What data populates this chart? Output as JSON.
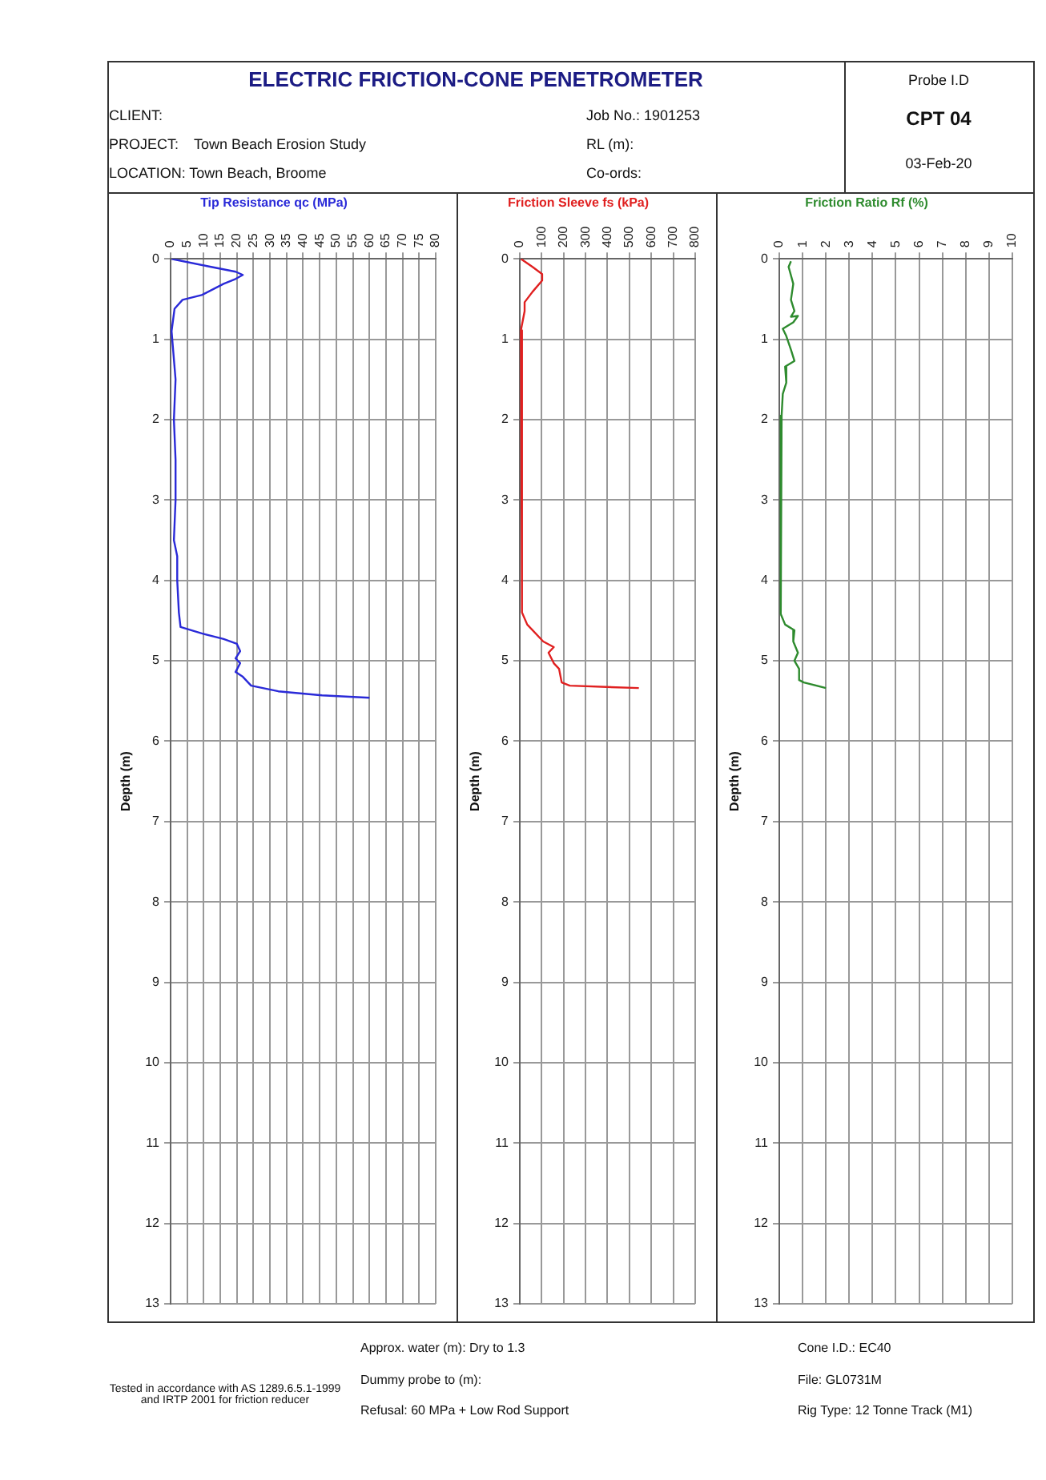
{
  "chart_data": [
    {
      "type": "other",
      "title": "ELECTRIC FRICTION-CONE PENETROMETER",
      "annotations": [
        "CLIENT:",
        "PROJECT:",
        "Town Beach Erosion Study",
        "LOCATION: Town Beach, Broome",
        "Job No.:  1901253",
        "RL (m):",
        "Co-ords:",
        "Probe I.D",
        "CPT 04",
        "03-Feb-20"
      ]
    },
    {
      "type": "line",
      "orientation": "horizontal",
      "title": "Tip Resistance qc (MPa)",
      "ylabel": "Depth (m)",
      "xlim": [
        0,
        80
      ],
      "xticks": [
        0,
        5,
        10,
        15,
        20,
        25,
        30,
        35,
        40,
        45,
        50,
        55,
        60,
        65,
        70,
        75,
        80
      ],
      "ylim": [
        13,
        0
      ],
      "yticks": [
        0,
        1,
        2,
        3,
        4,
        5,
        6,
        7,
        8,
        9,
        10,
        11,
        12,
        13
      ],
      "grid": true,
      "series": [
        {
          "color": "#2a2ad8",
          "values": [
            0.3,
            11,
            19.6,
            21.8,
            19.6,
            16,
            9.4,
            3.6,
            1.2,
            0.3,
            1.5,
            1,
            1.5,
            1.5,
            1,
            2,
            2,
            2.5,
            3,
            9.4,
            16,
            20,
            21,
            19.6,
            21,
            19.6,
            21.8,
            24.3,
            32.5,
            45.7,
            60
          ],
          "x": [
            0,
            0.09,
            0.16,
            0.2,
            0.25,
            0.31,
            0.45,
            0.51,
            0.62,
            0.9,
            1.5,
            2,
            2.5,
            3,
            3.5,
            3.7,
            4,
            4.4,
            4.58,
            4.66,
            4.73,
            4.79,
            4.88,
            4.97,
            5.03,
            5.14,
            5.2,
            5.31,
            5.38,
            5.43,
            5.46
          ]
        }
      ]
    },
    {
      "type": "line",
      "orientation": "horizontal",
      "title": "Friction Sleeve fs (kPa)",
      "ylabel": "Depth (m)",
      "xlim": [
        0,
        800
      ],
      "xticks": [
        0,
        100,
        200,
        300,
        400,
        500,
        600,
        700,
        800
      ],
      "ylim": [
        13,
        0
      ],
      "yticks": [
        0,
        1,
        2,
        3,
        4,
        5,
        6,
        7,
        8,
        9,
        10,
        11,
        12,
        13
      ],
      "grid": true,
      "series": [
        {
          "color": "#e02020",
          "values": [
            5,
            58,
            102,
            102,
            58,
            22,
            22,
            5,
            10,
            10,
            10,
            10,
            34,
            107,
            155,
            131,
            155,
            179,
            191,
            228,
            543
          ],
          "x": [
            0,
            0.1,
            0.19,
            0.27,
            0.41,
            0.54,
            0.65,
            0.89,
            1.5,
            2.5,
            3.5,
            4.4,
            4.55,
            4.76,
            4.83,
            4.9,
            5.03,
            5.1,
            5.27,
            5.31,
            5.34
          ]
        }
      ]
    },
    {
      "type": "line",
      "orientation": "horizontal",
      "title": "Friction Ratio Rf (%)",
      "ylabel": "Depth (m)",
      "xlim": [
        0,
        10
      ],
      "xticks": [
        0,
        1,
        2,
        3,
        4,
        5,
        6,
        7,
        8,
        9,
        10
      ],
      "ylim": [
        13,
        0
      ],
      "yticks": [
        0,
        1,
        2,
        3,
        4,
        5,
        6,
        7,
        8,
        9,
        10,
        11,
        12,
        13
      ],
      "grid": true,
      "series": [
        {
          "color": "#2e8b2e",
          "values": [
            0.5,
            0.4,
            0.6,
            0.5,
            0.65,
            0.5,
            0.8,
            0.6,
            0.15,
            0.3,
            0.5,
            0.65,
            0.25,
            0.3,
            0.15,
            0.1,
            0.05,
            0.05,
            0.05,
            0.1,
            0.25,
            0.65,
            0.6,
            0.8,
            0.65,
            0.85,
            0.85,
            1.05,
            2
          ],
          "x": [
            0.03,
            0.1,
            0.31,
            0.51,
            0.65,
            0.72,
            0.71,
            0.79,
            0.87,
            0.96,
            1.13,
            1.27,
            1.34,
            1.54,
            1.68,
            1.95,
            2.5,
            3.18,
            3.87,
            4.42,
            4.55,
            4.62,
            4.76,
            4.9,
            5,
            5.1,
            5.24,
            5.27,
            5.34
          ]
        }
      ]
    },
    {
      "type": "other",
      "annotations": [
        "Tested in accordance with AS 1289.6.5.1-1999 and IRTP 2001 for friction reducer",
        "Approx. water (m): Dry to 1.3",
        "Dummy probe to (m):",
        "Refusal: 60 MPa + Low Rod Support",
        "Cone I.D.: EC40",
        "File: GL0731M",
        "Rig Type: 12 Tonne Track (M1)"
      ]
    }
  ]
}
